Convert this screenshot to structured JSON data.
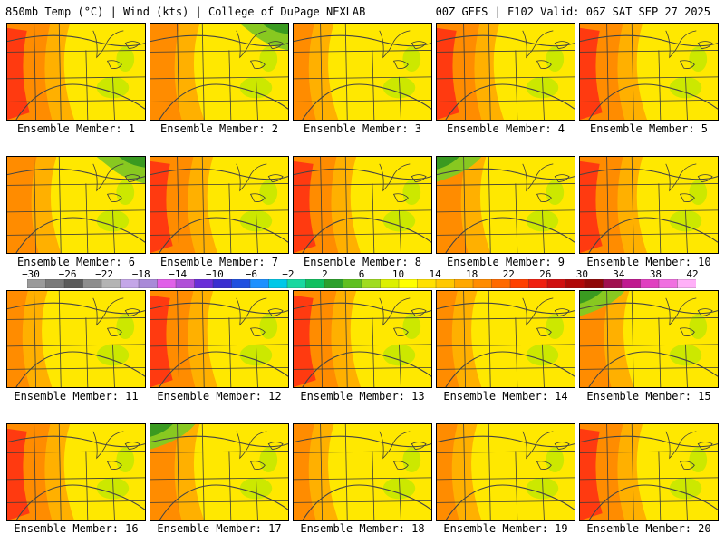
{
  "header": {
    "left": "850mb Temp (°C) | Wind (kts) | College of DuPage NEXLAB",
    "right": "00Z GEFS | F102 Valid: 06Z SAT SEP 27 2025"
  },
  "members": [
    {
      "label": "Ensemble Member: 1",
      "pattern": "hot_west"
    },
    {
      "label": "Ensemble Member: 2",
      "pattern": "cool_ne"
    },
    {
      "label": "Ensemble Member: 3",
      "pattern": "mild"
    },
    {
      "label": "Ensemble Member: 4",
      "pattern": "hot_west"
    },
    {
      "label": "Ensemble Member: 5",
      "pattern": "hot_west"
    },
    {
      "label": "Ensemble Member: 6",
      "pattern": "cool_ne"
    },
    {
      "label": "Ensemble Member: 7",
      "pattern": "hot_west"
    },
    {
      "label": "Ensemble Member: 8",
      "pattern": "hot_west"
    },
    {
      "label": "Ensemble Member: 9",
      "pattern": "cool_nw"
    },
    {
      "label": "Ensemble Member: 10",
      "pattern": "hot_west"
    },
    {
      "label": "Ensemble Member: 11",
      "pattern": "mild"
    },
    {
      "label": "Ensemble Member: 12",
      "pattern": "hot_west"
    },
    {
      "label": "Ensemble Member: 13",
      "pattern": "hot_west"
    },
    {
      "label": "Ensemble Member: 14",
      "pattern": "mild"
    },
    {
      "label": "Ensemble Member: 15",
      "pattern": "cool_nw"
    },
    {
      "label": "Ensemble Member: 16",
      "pattern": "hot_west"
    },
    {
      "label": "Ensemble Member: 17",
      "pattern": "cool_nw"
    },
    {
      "label": "Ensemble Member: 18",
      "pattern": "mild"
    },
    {
      "label": "Ensemble Member: 19",
      "pattern": "mild"
    },
    {
      "label": "Ensemble Member: 20",
      "pattern": "hot_west"
    }
  ],
  "colorbar": {
    "labels": [
      "−30",
      "−26",
      "−22",
      "−18",
      "−14",
      "−10",
      "−6",
      "−2",
      "2",
      "6",
      "10",
      "14",
      "18",
      "22",
      "26",
      "30",
      "34",
      "38",
      "42"
    ],
    "colors": [
      "#9a9a9a",
      "#7a7a7a",
      "#5c5c5c",
      "#8e8e8e",
      "#b4b4b4",
      "#c4a6e8",
      "#a98ad8",
      "#e060e8",
      "#b050d8",
      "#6a2fd8",
      "#3a2fd0",
      "#2050e0",
      "#1e90ff",
      "#00c8e8",
      "#18d8a0",
      "#10c060",
      "#2ca02c",
      "#60c020",
      "#a0dc20",
      "#dcf000",
      "#ffff00",
      "#ffe000",
      "#ffc800",
      "#ffa800",
      "#ff8c00",
      "#ff6a00",
      "#ff4000",
      "#f02010",
      "#d01010",
      "#b00808",
      "#900808",
      "#a01050",
      "#c01890",
      "#e040c0",
      "#f070e0",
      "#ffb0f8"
    ]
  },
  "palette": {
    "hot": "#ff3a10",
    "warm": "#ff8c00",
    "orange": "#ffb000",
    "yellow": "#ffe800",
    "lime": "#cce800",
    "green": "#88c820",
    "dark_green": "#3a9a20",
    "border": "#3a3a3a"
  }
}
